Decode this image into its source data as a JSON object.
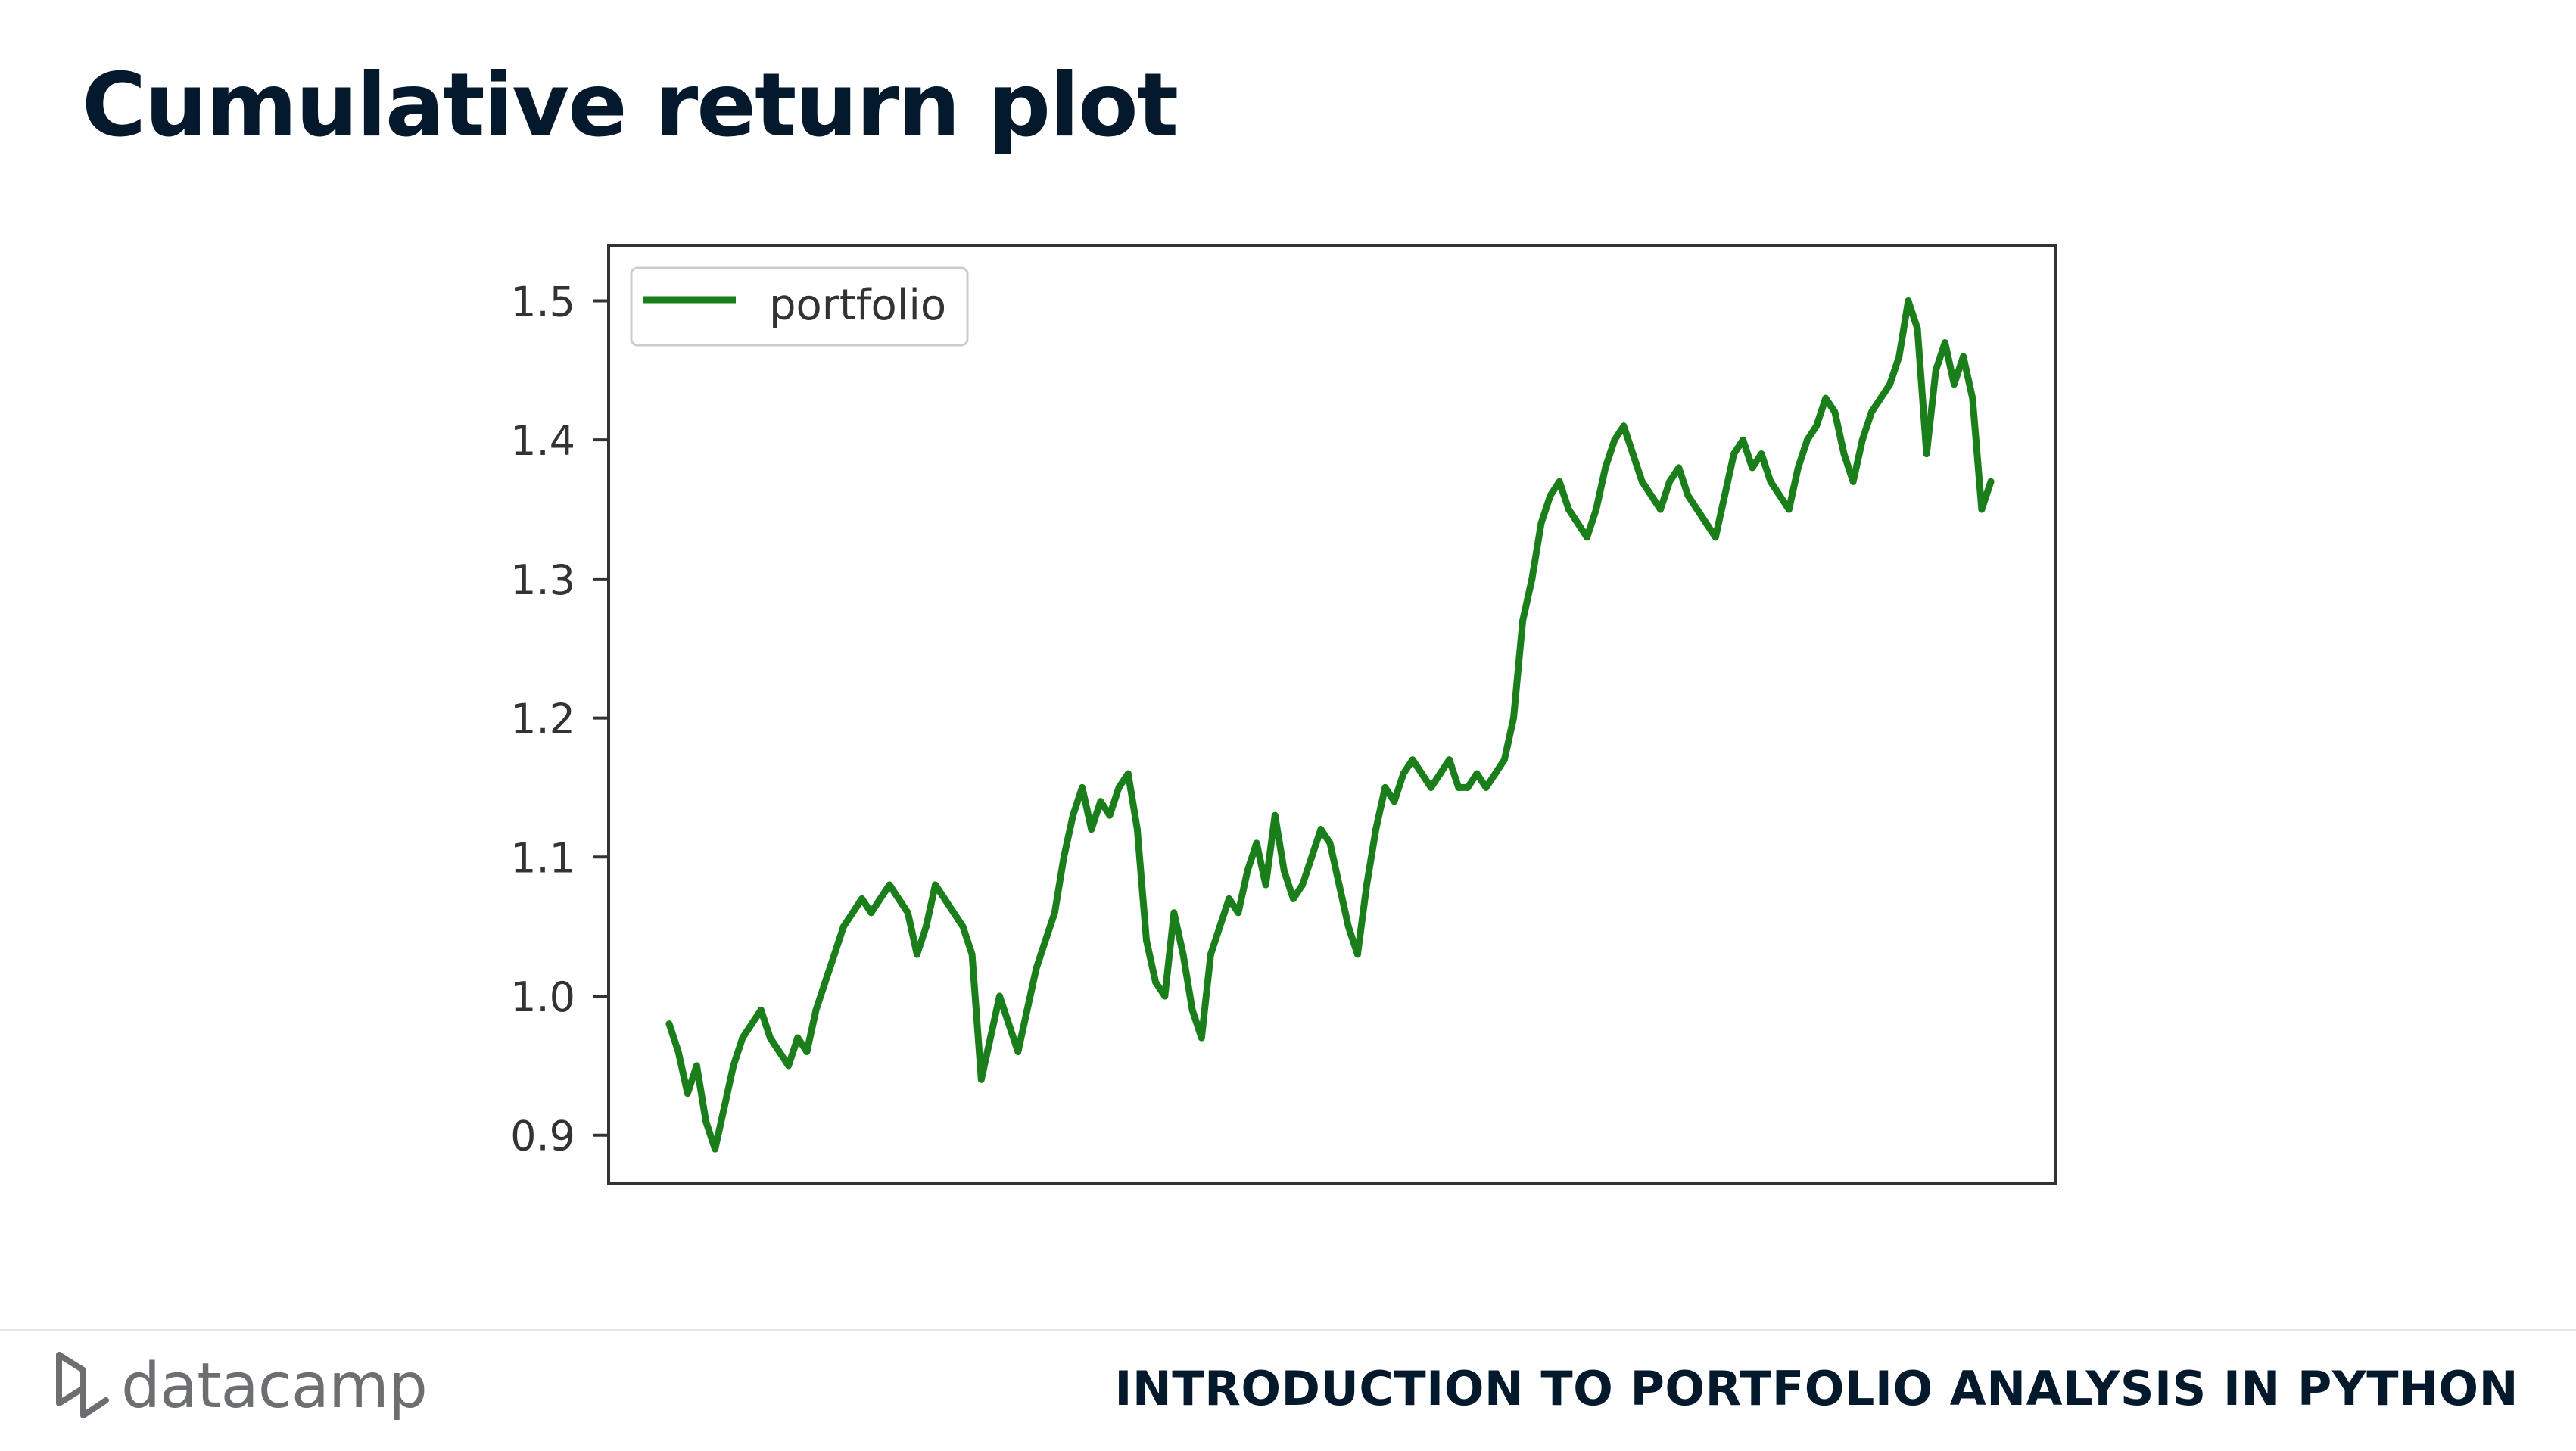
{
  "slide": {
    "title": "Cumulative return plot"
  },
  "footer": {
    "brand": "datacamp",
    "course": "INTRODUCTION TO PORTFOLIO ANALYSIS IN PYTHON",
    "brand_icon": "datacamp-logo-icon"
  },
  "colors": {
    "title": "#05192d",
    "series": "#1a7f1a",
    "axes": "#333333",
    "brand_gray": "#6d6e71"
  },
  "chart_data": {
    "type": "line",
    "title": "",
    "xlabel": "",
    "ylabel": "",
    "ylim": [
      0.865,
      1.54
    ],
    "yticks": [
      0.9,
      1.0,
      1.1,
      1.2,
      1.3,
      1.4,
      1.5
    ],
    "ytick_labels": [
      "0.9",
      "1.0",
      "1.1",
      "1.2",
      "1.3",
      "1.4",
      "1.5"
    ],
    "x_tick_labels_shown": false,
    "grid": false,
    "legend": {
      "position": "upper-left"
    },
    "series": [
      {
        "name": "portfolio",
        "color": "#1a7f1a",
        "values": [
          0.98,
          0.96,
          0.93,
          0.95,
          0.91,
          0.89,
          0.92,
          0.95,
          0.97,
          0.98,
          0.99,
          0.97,
          0.96,
          0.95,
          0.97,
          0.96,
          0.99,
          1.01,
          1.03,
          1.05,
          1.06,
          1.07,
          1.06,
          1.07,
          1.08,
          1.07,
          1.06,
          1.03,
          1.05,
          1.08,
          1.07,
          1.06,
          1.05,
          1.03,
          0.94,
          0.97,
          1.0,
          0.98,
          0.96,
          0.99,
          1.02,
          1.04,
          1.06,
          1.1,
          1.13,
          1.15,
          1.12,
          1.14,
          1.13,
          1.15,
          1.16,
          1.12,
          1.04,
          1.01,
          1.0,
          1.06,
          1.03,
          0.99,
          0.97,
          1.03,
          1.05,
          1.07,
          1.06,
          1.09,
          1.11,
          1.08,
          1.13,
          1.09,
          1.07,
          1.08,
          1.1,
          1.12,
          1.11,
          1.08,
          1.05,
          1.03,
          1.08,
          1.12,
          1.15,
          1.14,
          1.16,
          1.17,
          1.16,
          1.15,
          1.16,
          1.17,
          1.15,
          1.15,
          1.16,
          1.15,
          1.16,
          1.17,
          1.2,
          1.27,
          1.3,
          1.34,
          1.36,
          1.37,
          1.35,
          1.34,
          1.33,
          1.35,
          1.38,
          1.4,
          1.41,
          1.39,
          1.37,
          1.36,
          1.35,
          1.37,
          1.38,
          1.36,
          1.35,
          1.34,
          1.33,
          1.36,
          1.39,
          1.4,
          1.38,
          1.39,
          1.37,
          1.36,
          1.35,
          1.38,
          1.4,
          1.41,
          1.43,
          1.42,
          1.39,
          1.37,
          1.4,
          1.42,
          1.43,
          1.44,
          1.46,
          1.5,
          1.48,
          1.39,
          1.45,
          1.47,
          1.44,
          1.46,
          1.43,
          1.35,
          1.37
        ]
      }
    ]
  }
}
